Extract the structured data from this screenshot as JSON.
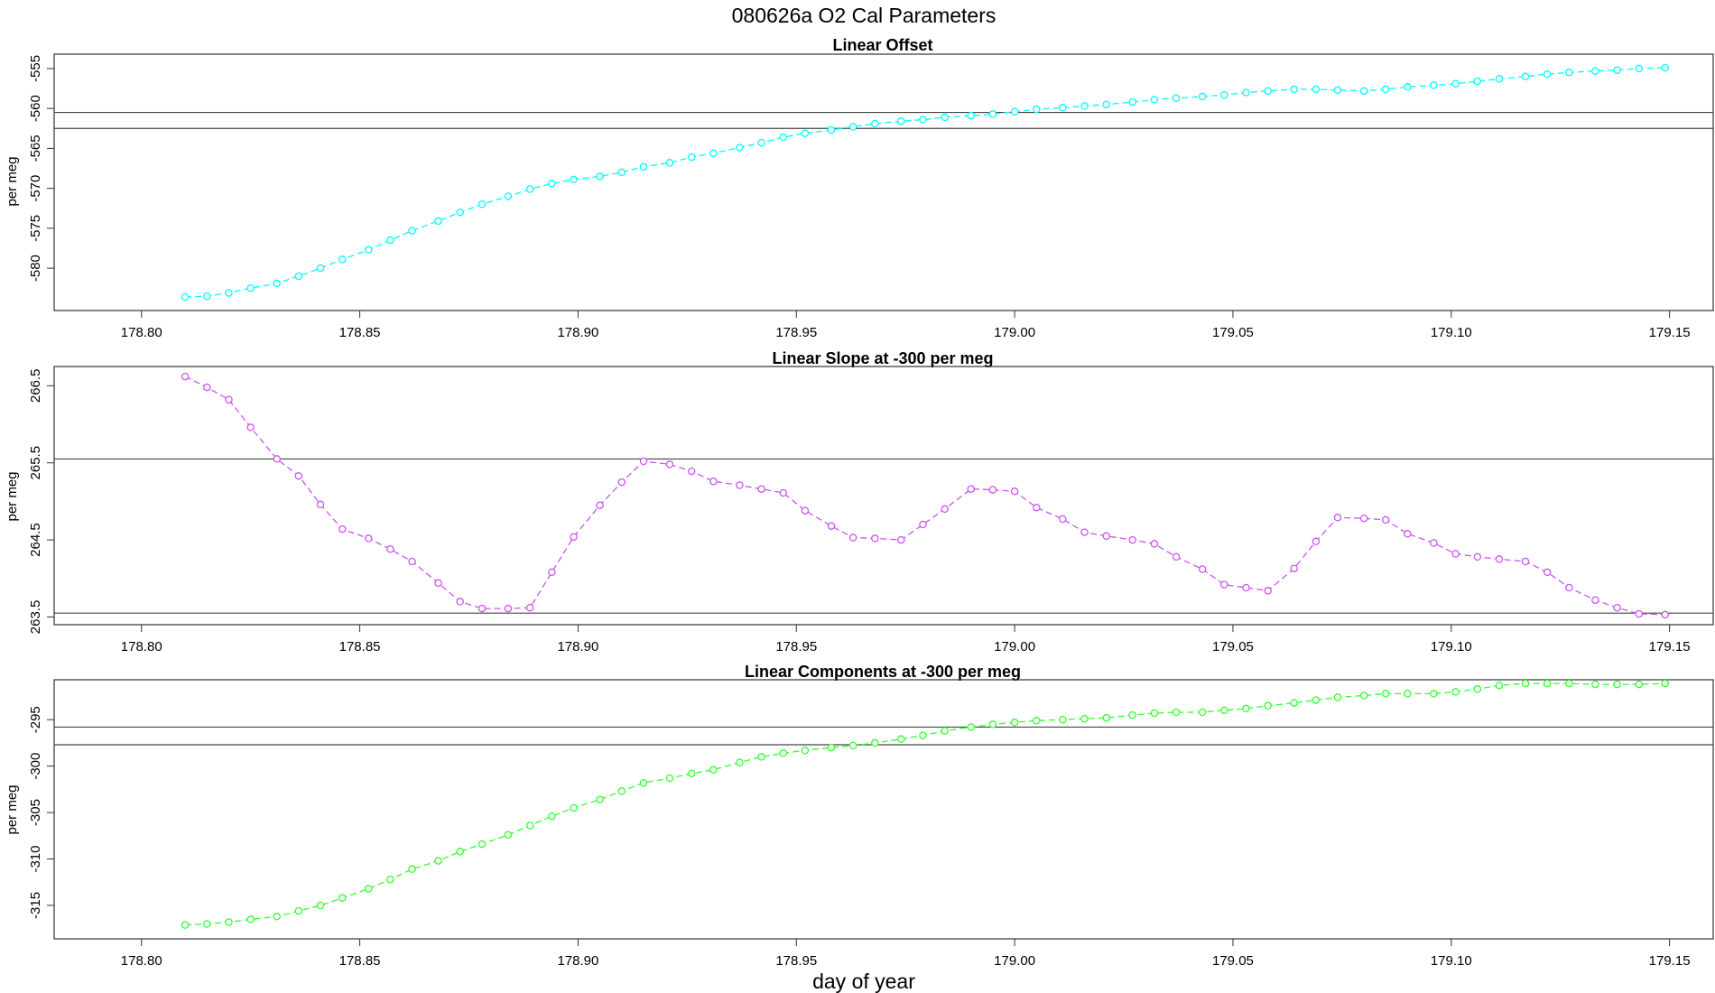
{
  "figure": {
    "title": "080626a   O2 Cal Parameters",
    "xlabel": "day of year"
  },
  "chart_data": [
    {
      "type": "line",
      "title": "Linear Offset",
      "ylabel": "per meg",
      "xlabel": "",
      "xlim": [
        178.78,
        179.16
      ],
      "ylim": [
        -585.3,
        -553.2
      ],
      "x_ticks": [
        "178.80",
        "178.85",
        "178.90",
        "178.95",
        "179.00",
        "179.05",
        "179.10",
        "179.15"
      ],
      "y_ticks": [
        "-555",
        "-560",
        "-565",
        "-570",
        "-575",
        "-580"
      ],
      "hlines": [
        -560.5,
        -562.5
      ],
      "grid": false,
      "series": [
        {
          "color": "#00ffff",
          "x": [
            178.81,
            178.815,
            178.82,
            178.825,
            178.831,
            178.836,
            178.841,
            178.846,
            178.852,
            178.857,
            178.862,
            178.868,
            178.873,
            178.878,
            178.884,
            178.889,
            178.894,
            178.899,
            178.905,
            178.91,
            178.915,
            178.921,
            178.926,
            178.931,
            178.937,
            178.942,
            178.947,
            178.952,
            178.958,
            178.963,
            178.968,
            178.974,
            178.979,
            178.984,
            178.99,
            178.995,
            179.0,
            179.005,
            179.011,
            179.016,
            179.021,
            179.027,
            179.032,
            179.037,
            179.043,
            179.048,
            179.053,
            179.058,
            179.064,
            179.069,
            179.074,
            179.08,
            179.085,
            179.09,
            179.096,
            179.101,
            179.106,
            179.111,
            179.117,
            179.122,
            179.127,
            179.133,
            179.138,
            179.143,
            179.149
          ],
          "values": [
            -583.6,
            -583.5,
            -583.1,
            -582.5,
            -581.9,
            -581.0,
            -580.0,
            -578.9,
            -577.7,
            -576.5,
            -575.3,
            -574.1,
            -573.0,
            -572.0,
            -571.0,
            -570.1,
            -569.4,
            -568.9,
            -568.5,
            -568.0,
            -567.3,
            -566.8,
            -566.1,
            -565.6,
            -564.9,
            -564.3,
            -563.6,
            -563.1,
            -562.7,
            -562.3,
            -561.9,
            -561.6,
            -561.4,
            -561.1,
            -560.9,
            -560.7,
            -560.4,
            -560.1,
            -559.9,
            -559.7,
            -559.5,
            -559.2,
            -558.9,
            -558.7,
            -558.5,
            -558.3,
            -558.0,
            -557.8,
            -557.6,
            -557.6,
            -557.7,
            -557.8,
            -557.6,
            -557.3,
            -557.1,
            -556.9,
            -556.6,
            -556.3,
            -556.0,
            -555.7,
            -555.5,
            -555.3,
            -555.2,
            -555.0,
            -554.9
          ]
        }
      ]
    },
    {
      "type": "line",
      "title": "Linear Slope at -300 per meg",
      "ylabel": "per meg",
      "xlabel": "",
      "xlim": [
        178.78,
        179.16
      ],
      "ylim": [
        263.4,
        266.75
      ],
      "x_ticks": [
        "178.80",
        "178.85",
        "178.90",
        "178.95",
        "179.00",
        "179.05",
        "179.10",
        "179.15"
      ],
      "y_ticks": [
        "266.5",
        "265.5",
        "264.5",
        "263.5"
      ],
      "hlines": [
        265.55,
        263.55
      ],
      "grid": false,
      "series": [
        {
          "color": "#cc55ee",
          "x": [
            178.81,
            178.815,
            178.82,
            178.825,
            178.831,
            178.836,
            178.841,
            178.846,
            178.852,
            178.857,
            178.862,
            178.868,
            178.873,
            178.878,
            178.884,
            178.889,
            178.894,
            178.899,
            178.905,
            178.91,
            178.915,
            178.921,
            178.926,
            178.931,
            178.937,
            178.942,
            178.947,
            178.952,
            178.958,
            178.963,
            178.968,
            178.974,
            178.979,
            178.984,
            178.99,
            178.995,
            179.0,
            179.005,
            179.011,
            179.016,
            179.021,
            179.027,
            179.032,
            179.037,
            179.043,
            179.048,
            179.053,
            179.058,
            179.064,
            179.069,
            179.074,
            179.08,
            179.085,
            179.09,
            179.096,
            179.101,
            179.106,
            179.111,
            179.117,
            179.122,
            179.127,
            179.133,
            179.138,
            179.143,
            179.149
          ],
          "values": [
            266.62,
            266.48,
            266.32,
            265.96,
            265.55,
            265.33,
            264.96,
            264.64,
            264.52,
            264.38,
            264.22,
            263.94,
            263.7,
            263.61,
            263.61,
            263.62,
            264.08,
            264.54,
            264.95,
            265.25,
            265.52,
            265.48,
            265.39,
            265.26,
            265.21,
            265.16,
            265.11,
            264.88,
            264.68,
            264.53,
            264.52,
            264.5,
            264.7,
            264.9,
            265.16,
            265.15,
            265.13,
            264.92,
            264.77,
            264.6,
            264.55,
            264.5,
            264.45,
            264.28,
            264.12,
            263.92,
            263.88,
            263.84,
            264.13,
            264.48,
            264.79,
            264.78,
            264.76,
            264.58,
            264.46,
            264.32,
            264.28,
            264.25,
            264.22,
            264.08,
            263.88,
            263.72,
            263.62,
            263.54,
            263.53
          ]
        }
      ]
    },
    {
      "type": "line",
      "title": "Linear Components at -300 per meg",
      "ylabel": "per meg",
      "xlabel": "day of year",
      "xlim": [
        178.78,
        179.16
      ],
      "ylim": [
        -318.6,
        -290.7
      ],
      "x_ticks": [
        "178.80",
        "178.85",
        "178.90",
        "178.95",
        "179.00",
        "179.05",
        "179.10",
        "179.15"
      ],
      "y_ticks": [
        "-295",
        "-300",
        "-305",
        "-310",
        "-315"
      ],
      "hlines": [
        -295.8,
        -297.7
      ],
      "grid": false,
      "series": [
        {
          "color": "#33ff33",
          "x": [
            178.81,
            178.815,
            178.82,
            178.825,
            178.831,
            178.836,
            178.841,
            178.846,
            178.852,
            178.857,
            178.862,
            178.868,
            178.873,
            178.878,
            178.884,
            178.889,
            178.894,
            178.899,
            178.905,
            178.91,
            178.915,
            178.921,
            178.926,
            178.931,
            178.937,
            178.942,
            178.947,
            178.952,
            178.958,
            178.963,
            178.968,
            178.974,
            178.979,
            178.984,
            178.99,
            178.995,
            179.0,
            179.005,
            179.011,
            179.016,
            179.021,
            179.027,
            179.032,
            179.037,
            179.043,
            179.048,
            179.053,
            179.058,
            179.064,
            179.069,
            179.074,
            179.08,
            179.085,
            179.09,
            179.096,
            179.101,
            179.106,
            179.111,
            179.117,
            179.122,
            179.127,
            179.133,
            179.138,
            179.143,
            179.149
          ],
          "values": [
            -317.1,
            -317.0,
            -316.8,
            -316.5,
            -316.2,
            -315.6,
            -315.0,
            -314.2,
            -313.2,
            -312.2,
            -311.1,
            -310.2,
            -309.2,
            -308.4,
            -307.4,
            -306.4,
            -305.4,
            -304.5,
            -303.6,
            -302.7,
            -301.8,
            -301.3,
            -300.8,
            -300.4,
            -299.6,
            -299.0,
            -298.6,
            -298.3,
            -298.0,
            -297.8,
            -297.5,
            -297.1,
            -296.7,
            -296.2,
            -295.8,
            -295.5,
            -295.3,
            -295.1,
            -295.0,
            -294.9,
            -294.8,
            -294.5,
            -294.3,
            -294.2,
            -294.2,
            -294.0,
            -293.8,
            -293.5,
            -293.2,
            -292.9,
            -292.6,
            -292.4,
            -292.2,
            -292.2,
            -292.2,
            -292.0,
            -291.7,
            -291.3,
            -291.1,
            -291.1,
            -291.1,
            -291.2,
            -291.2,
            -291.2,
            -291.1
          ]
        }
      ]
    }
  ]
}
